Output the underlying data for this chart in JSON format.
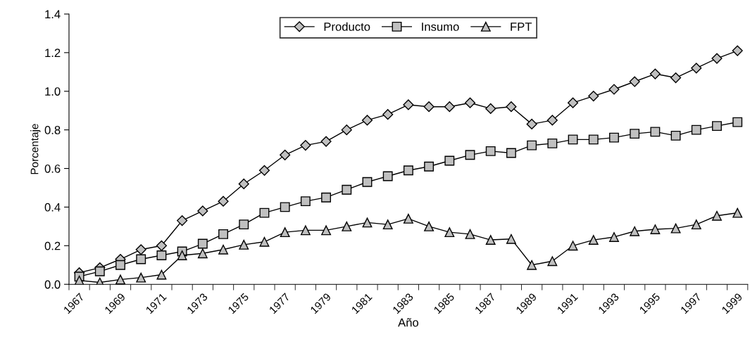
{
  "chart_data": {
    "type": "line",
    "xlabel": "Año",
    "ylabel": "Porcentaje",
    "categories": [
      "1967",
      null,
      "1969",
      null,
      "1971",
      null,
      "1973",
      null,
      "1975",
      null,
      "1977",
      null,
      "1979",
      null,
      "1981",
      null,
      "1983",
      null,
      "1985",
      null,
      "1987",
      null,
      "1989",
      null,
      "1991",
      null,
      "1993",
      null,
      "1995",
      null,
      "1997",
      null,
      "1999"
    ],
    "series": [
      {
        "name": "Producto",
        "color": "#c0c0c0",
        "marker": "diamond",
        "values": [
          0.06,
          0.086,
          0.13,
          0.18,
          0.2,
          0.33,
          0.38,
          0.43,
          0.52,
          0.59,
          0.67,
          0.72,
          0.74,
          0.8,
          0.85,
          0.88,
          0.93,
          0.92,
          0.92,
          0.94,
          0.91,
          0.92,
          0.83,
          0.85,
          0.94,
          0.975,
          1.01,
          1.05,
          1.09,
          1.07,
          1.12,
          1.17,
          1.21
        ]
      },
      {
        "name": "Insumo",
        "color": "#c0c0c0",
        "marker": "square",
        "values": [
          0.04,
          0.067,
          0.1,
          0.13,
          0.15,
          0.17,
          0.21,
          0.26,
          0.31,
          0.37,
          0.4,
          0.43,
          0.45,
          0.49,
          0.53,
          0.56,
          0.59,
          0.61,
          0.64,
          0.67,
          0.69,
          0.68,
          0.72,
          0.73,
          0.75,
          0.75,
          0.76,
          0.78,
          0.79,
          0.77,
          0.8,
          0.82,
          0.84
        ]
      },
      {
        "name": "FPT",
        "color": "#c0c0c0",
        "marker": "triangle",
        "values": [
          0.02,
          0.01,
          0.025,
          0.035,
          0.05,
          0.15,
          0.16,
          0.18,
          0.205,
          0.22,
          0.27,
          0.28,
          0.28,
          0.3,
          0.32,
          0.31,
          0.34,
          0.3,
          0.27,
          0.26,
          0.23,
          0.235,
          0.1,
          0.12,
          0.2,
          0.23,
          0.245,
          0.275,
          0.285,
          0.29,
          0.31,
          0.355,
          0.37
        ]
      }
    ],
    "ylim": [
      0,
      1.4
    ],
    "yticks": [
      {
        "value": 0,
        "label": "0.0"
      },
      {
        "value": 0.2,
        "label": "0.2"
      },
      {
        "value": 0.4,
        "label": "0.4"
      },
      {
        "value": 0.6,
        "label": "0.6"
      },
      {
        "value": 0.8,
        "label": "0.8"
      },
      {
        "value": 1.0,
        "label": "1.0"
      },
      {
        "value": 1.2,
        "label": "1.2"
      },
      {
        "value": 1.4,
        "label": "1.4"
      }
    ],
    "grid": false,
    "legend": "top",
    "line_style": "solid"
  }
}
